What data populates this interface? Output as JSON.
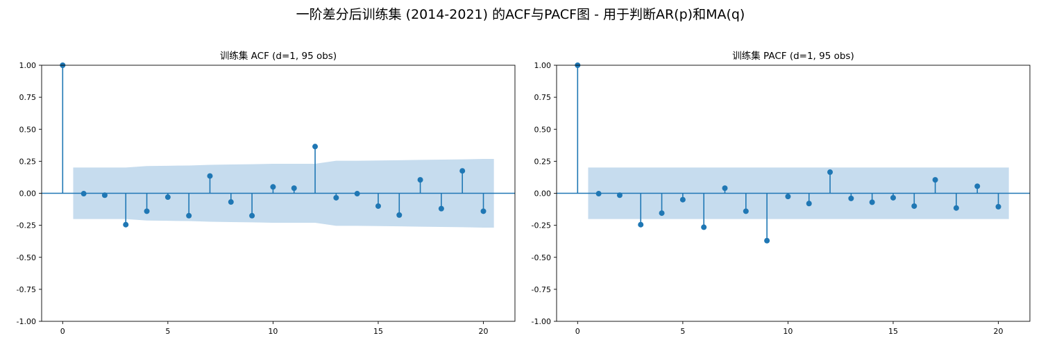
{
  "suptitle": "一阶差分后训练集 (2014-2021) 的ACF与PACF图 - 用于判断AR(p)和MA(q)",
  "colors": {
    "stem": "#1f77b4",
    "band": "#c6dcee",
    "axis": "#000000"
  },
  "chart_data": [
    {
      "type": "stem",
      "title": "训练集 ACF (d=1, 95 obs)",
      "xlabel": "",
      "ylabel": "",
      "xlim": [
        -1,
        21.5
      ],
      "ylim": [
        -1.0,
        1.0
      ],
      "xticks": [
        0,
        5,
        10,
        15,
        20
      ],
      "yticks": [
        -1.0,
        -0.75,
        -0.5,
        -0.25,
        0.0,
        0.25,
        0.5,
        0.75,
        1.0
      ],
      "ytick_labels": [
        "-1.00",
        "-0.75",
        "-0.50",
        "-0.25",
        "0.00",
        "0.25",
        "0.50",
        "0.75",
        "1.00"
      ],
      "lags": [
        0,
        1,
        2,
        3,
        4,
        5,
        6,
        7,
        8,
        9,
        10,
        11,
        12,
        13,
        14,
        15,
        16,
        17,
        18,
        19,
        20
      ],
      "values": [
        1.0,
        -0.003,
        -0.015,
        -0.245,
        -0.14,
        -0.03,
        -0.175,
        0.135,
        -0.068,
        -0.175,
        0.05,
        0.04,
        0.365,
        -0.035,
        -0.003,
        -0.1,
        -0.17,
        0.105,
        -0.12,
        0.175,
        -0.14
      ],
      "confidence_band": {
        "x": [
          0.5,
          1,
          2,
          3,
          4,
          5,
          6,
          7,
          8,
          9,
          10,
          11,
          12,
          13,
          14,
          15,
          16,
          17,
          18,
          19,
          20,
          20.5
        ],
        "upper": [
          0.201,
          0.201,
          0.201,
          0.201,
          0.213,
          0.215,
          0.217,
          0.222,
          0.225,
          0.227,
          0.23,
          0.23,
          0.23,
          0.254,
          0.254,
          0.256,
          0.258,
          0.261,
          0.263,
          0.265,
          0.268,
          0.268
        ]
      }
    },
    {
      "type": "stem",
      "title": "训练集 PACF (d=1, 95 obs)",
      "xlabel": "",
      "ylabel": "",
      "xlim": [
        -1,
        21.5
      ],
      "ylim": [
        -1.0,
        1.0
      ],
      "xticks": [
        0,
        5,
        10,
        15,
        20
      ],
      "yticks": [
        -1.0,
        -0.75,
        -0.5,
        -0.25,
        0.0,
        0.25,
        0.5,
        0.75,
        1.0
      ],
      "ytick_labels": [
        "-1.00",
        "-0.75",
        "-0.50",
        "-0.25",
        "0.00",
        "0.25",
        "0.50",
        "0.75",
        "1.00"
      ],
      "lags": [
        0,
        1,
        2,
        3,
        4,
        5,
        6,
        7,
        8,
        9,
        10,
        11,
        12,
        13,
        14,
        15,
        16,
        17,
        18,
        19,
        20
      ],
      "values": [
        1.0,
        -0.003,
        -0.015,
        -0.245,
        -0.155,
        -0.05,
        -0.265,
        0.04,
        -0.14,
        -0.37,
        -0.025,
        -0.08,
        0.165,
        -0.04,
        -0.07,
        -0.035,
        -0.1,
        0.105,
        -0.115,
        0.055,
        -0.105
      ],
      "confidence_band": {
        "x": [
          0.5,
          20.5
        ],
        "upper": [
          0.201,
          0.201
        ]
      }
    }
  ]
}
